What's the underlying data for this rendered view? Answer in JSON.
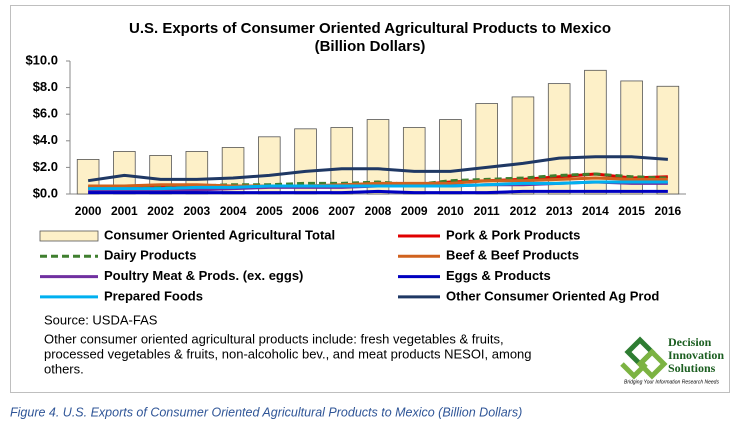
{
  "chart_data": {
    "type": "bar",
    "title": "U.S. Exports of Consumer Oriented Agricultural Products to Mexico",
    "subtitle": "(Billion Dollars)",
    "categories": [
      "2000",
      "2001",
      "2002",
      "2003",
      "2004",
      "2005",
      "2006",
      "2007",
      "2008",
      "2009",
      "2010",
      "2011",
      "2012",
      "2013",
      "2014",
      "2015",
      "2016"
    ],
    "series": [
      {
        "name": "Consumer Oriented Agricultural Total",
        "type": "bar",
        "color": "#fdf0c8",
        "values": [
          2.6,
          3.2,
          2.9,
          3.2,
          3.5,
          4.3,
          4.9,
          5.0,
          5.6,
          5.0,
          5.6,
          6.8,
          7.3,
          8.3,
          9.3,
          8.5,
          8.1
        ]
      },
      {
        "name": "Pork & Pork Products",
        "type": "line",
        "color": "#e00000",
        "values": [
          0.4,
          0.5,
          0.5,
          0.5,
          0.5,
          0.6,
          0.6,
          0.6,
          0.7,
          0.7,
          0.9,
          1.0,
          1.1,
          1.3,
          1.5,
          1.2,
          1.3
        ]
      },
      {
        "name": "Dairy Products",
        "type": "line",
        "color": "#3f7f2f",
        "dashed": true,
        "values": [
          0.5,
          0.6,
          0.6,
          0.6,
          0.7,
          0.7,
          0.8,
          0.8,
          0.9,
          0.7,
          1.0,
          1.1,
          1.2,
          1.4,
          1.5,
          1.3,
          1.2
        ]
      },
      {
        "name": "Beef & Beef Products",
        "type": "line",
        "color": "#d0621e",
        "values": [
          0.6,
          0.6,
          0.7,
          0.7,
          0.6,
          0.6,
          0.6,
          0.7,
          0.8,
          0.8,
          0.8,
          1.0,
          1.0,
          1.1,
          1.2,
          1.1,
          1.1
        ]
      },
      {
        "name": "Poultry Meat & Prods. (ex. eggs)",
        "type": "line",
        "color": "#7030a0",
        "values": [
          0.3,
          0.3,
          0.3,
          0.3,
          0.4,
          0.5,
          0.5,
          0.5,
          0.6,
          0.6,
          0.6,
          0.7,
          0.7,
          0.8,
          0.9,
          0.8,
          0.8
        ]
      },
      {
        "name": "Eggs & Products",
        "type": "line",
        "color": "#0000c0",
        "values": [
          0.1,
          0.1,
          0.1,
          0.1,
          0.1,
          0.1,
          0.1,
          0.1,
          0.2,
          0.1,
          0.1,
          0.1,
          0.2,
          0.2,
          0.2,
          0.2,
          0.2
        ]
      },
      {
        "name": "Prepared Foods",
        "type": "line",
        "color": "#00b0f0",
        "values": [
          0.4,
          0.4,
          0.4,
          0.5,
          0.5,
          0.6,
          0.6,
          0.6,
          0.6,
          0.6,
          0.6,
          0.7,
          0.8,
          0.8,
          0.9,
          0.9,
          0.9
        ]
      },
      {
        "name": "Other Consumer Oriented Ag Prod",
        "type": "line",
        "color": "#1f3864",
        "values": [
          1.0,
          1.4,
          1.1,
          1.1,
          1.2,
          1.4,
          1.7,
          1.9,
          1.9,
          1.7,
          1.7,
          2.0,
          2.3,
          2.7,
          2.8,
          2.8,
          2.6
        ]
      }
    ],
    "ylim": [
      0,
      10
    ],
    "yticks": [
      {
        "value": 0,
        "label": "$0.0"
      },
      {
        "value": 2,
        "label": "$2.0"
      },
      {
        "value": 4,
        "label": "$4.0"
      },
      {
        "value": 6,
        "label": "$6.0"
      },
      {
        "value": 8,
        "label": "$8.0"
      },
      {
        "value": 10,
        "label": "$10.0"
      }
    ],
    "grid": false,
    "source": "Source: USDA-FAS",
    "note": [
      "Other consumer oriented agricultural  products include: fresh vegetables & fruits,",
      "processed vegetables & fruits, non-alcoholic bev., and meat products NESOI, among",
      "others."
    ]
  },
  "logo": {
    "lines": [
      "Decision",
      "Innovation",
      "Solutions"
    ],
    "tagline": "Bridging Your Information Research Needs"
  },
  "caption": "Figure 4. U.S. Exports of Consumer Oriented Agricultural Products to Mexico (Billion Dollars)"
}
